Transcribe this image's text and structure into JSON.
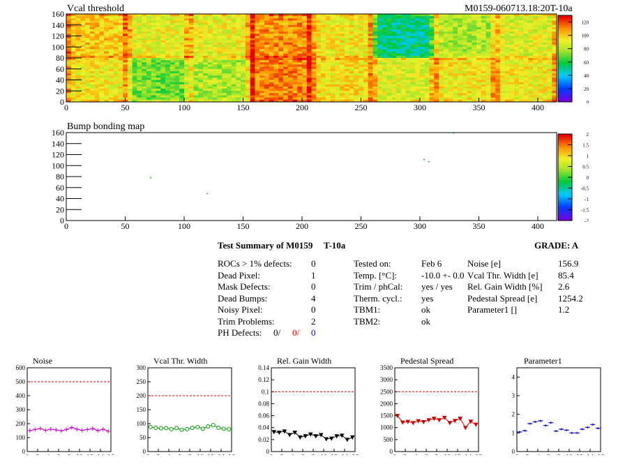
{
  "header": {
    "module_id": "M0159-060713.18:20T-10a"
  },
  "map1": {
    "title": "Vcal threshold",
    "x_ticks": [
      0,
      50,
      100,
      150,
      200,
      250,
      300,
      350,
      400
    ],
    "y_ticks": [
      0,
      20,
      40,
      60,
      80,
      100,
      120,
      140,
      160
    ],
    "z_ticks": [
      0,
      20,
      40,
      60,
      80,
      100,
      120
    ],
    "z_range": [
      0,
      130
    ]
  },
  "map2": {
    "title": "Bump bonding map",
    "x_ticks": [
      0,
      50,
      100,
      150,
      200,
      250,
      300,
      350,
      400
    ],
    "y_ticks": [
      0,
      20,
      40,
      60,
      80,
      100,
      120,
      140,
      160
    ],
    "z_ticks": [
      -2,
      -1.5,
      -1,
      -0.5,
      0,
      0.5,
      1,
      1.5,
      2
    ],
    "z_range": [
      -2,
      2
    ],
    "points": [
      [
        71,
        79
      ],
      [
        119,
        50
      ],
      [
        303,
        112
      ],
      [
        307,
        108
      ],
      [
        328,
        160
      ]
    ]
  },
  "summary": {
    "title": "Test Summary of M0159",
    "temp_tag": "T-10a",
    "grade": "GRADE:  A",
    "left": [
      {
        "label": "ROCs > 1% defects:",
        "value": "0"
      },
      {
        "label": "Dead Pixel:",
        "value": "1"
      },
      {
        "label": "Mask Defects:",
        "value": "0"
      },
      {
        "label": "Dead Bumps:",
        "value": "4"
      },
      {
        "label": "Noisy Pixel:",
        "value": "0"
      },
      {
        "label": "Trim Problems:",
        "value": "2"
      }
    ],
    "ph_defects": {
      "label": "PH Defects:",
      "v1": "0/",
      "v2": "0/",
      "v3": "0"
    },
    "middle": [
      {
        "label": "Tested on:",
        "value": "Feb 6"
      },
      {
        "label": "Temp. [°C]:",
        "value": "-10.0 +- 0.0"
      },
      {
        "label": "Trim / phCal:",
        "value": "yes / yes"
      },
      {
        "label": "Therm. cycl.:",
        "value": "yes"
      },
      {
        "label": "TBM1:",
        "value": "ok"
      },
      {
        "label": "TBM2:",
        "value": "ok"
      }
    ],
    "right": [
      {
        "label": "Noise [e]",
        "value": "156.9"
      },
      {
        "label": "Vcal Thr. Width [e]",
        "value": "85.4"
      },
      {
        "label": "Rel. Gain Width [%]",
        "value": "2.6"
      },
      {
        "label": "Pedestal Spread [e]",
        "value": "1254.2"
      },
      {
        "label": "Parameter1 []",
        "value": "1.2"
      }
    ]
  },
  "chart_data": [
    {
      "type": "line",
      "title": "Noise",
      "x": [
        0,
        1,
        2,
        3,
        4,
        5,
        6,
        7,
        8,
        9,
        10,
        11,
        12,
        13,
        14,
        15
      ],
      "values": [
        150,
        158,
        165,
        152,
        160,
        155,
        148,
        158,
        172,
        160,
        152,
        158,
        165,
        150,
        160,
        145
      ],
      "ylim": [
        0,
        600
      ],
      "yticks": [
        0,
        100,
        200,
        300,
        400,
        500,
        600
      ],
      "ylabels": [
        "0",
        "100",
        "200",
        "300",
        "400",
        "500",
        "600"
      ],
      "threshold": 500,
      "color": "#cc00cc",
      "marker": "cross"
    },
    {
      "type": "line",
      "title": "Vcal Thr. Width",
      "x": [
        0,
        1,
        2,
        3,
        4,
        5,
        6,
        7,
        8,
        9,
        10,
        11,
        12,
        13,
        14,
        15
      ],
      "values": [
        88,
        85,
        83,
        84,
        80,
        84,
        78,
        80,
        85,
        88,
        82,
        90,
        95,
        85,
        82,
        80
      ],
      "ylim": [
        0,
        300
      ],
      "yticks": [
        0,
        50,
        100,
        150,
        200,
        250,
        300
      ],
      "ylabels": [
        "0",
        "50",
        "100",
        "150",
        "200",
        "250",
        "300"
      ],
      "threshold": 200,
      "color": "#009900",
      "marker": "circle"
    },
    {
      "type": "line",
      "title": "Rel. Gain Width",
      "x": [
        0,
        1,
        2,
        3,
        4,
        5,
        6,
        7,
        8,
        9,
        10,
        11,
        12,
        13,
        14,
        15
      ],
      "values": [
        0.033,
        0.032,
        0.034,
        0.028,
        0.032,
        0.024,
        0.026,
        0.029,
        0.026,
        0.028,
        0.021,
        0.022,
        0.026,
        0.027,
        0.02,
        0.024
      ],
      "ylim": [
        0,
        0.14
      ],
      "yticks": [
        0,
        0.02,
        0.04,
        0.06,
        0.08,
        0.1,
        0.12,
        0.14
      ],
      "ylabels": [
        "0",
        "0.02",
        "0.04",
        "0.06",
        "0.08",
        "0.1",
        "0.12",
        "0.14"
      ],
      "threshold": 0.1,
      "color": "#000000",
      "marker": "triangle"
    },
    {
      "type": "line",
      "title": "Pedestal Spread",
      "x": [
        0,
        1,
        2,
        3,
        4,
        5,
        6,
        7,
        8,
        9,
        10,
        11,
        12,
        13,
        14,
        15
      ],
      "values": [
        1500,
        1220,
        1250,
        1200,
        1280,
        1240,
        1320,
        1380,
        1320,
        1420,
        1200,
        1290,
        1380,
        1000,
        1260,
        1130
      ],
      "ylim": [
        0,
        3500
      ],
      "yticks": [
        0,
        500,
        1000,
        1500,
        2000,
        2500,
        3000,
        3500
      ],
      "ylabels": [
        "0",
        "500",
        "1000",
        "1500",
        "2000",
        "2500",
        "3000",
        "3500"
      ],
      "threshold": 2500,
      "color": "#cc0000",
      "marker": "triangle"
    },
    {
      "type": "line",
      "title": "Parameter1",
      "x": [
        0,
        1,
        2,
        3,
        4,
        5,
        6,
        7,
        8,
        9,
        10,
        11,
        12,
        13,
        14,
        15
      ],
      "values": [
        1.05,
        1.12,
        1.5,
        1.6,
        1.65,
        1.4,
        1.55,
        1.1,
        1.2,
        1.15,
        1.0,
        1.0,
        1.2,
        1.3,
        1.45,
        1.25
      ],
      "ylim": [
        0,
        4.5
      ],
      "yticks": [
        0,
        1,
        2,
        3,
        4
      ],
      "ylabels": [
        "0",
        "1",
        "2",
        "3",
        "4"
      ],
      "threshold": null,
      "color": "#0000cc",
      "marker": "bar"
    }
  ]
}
